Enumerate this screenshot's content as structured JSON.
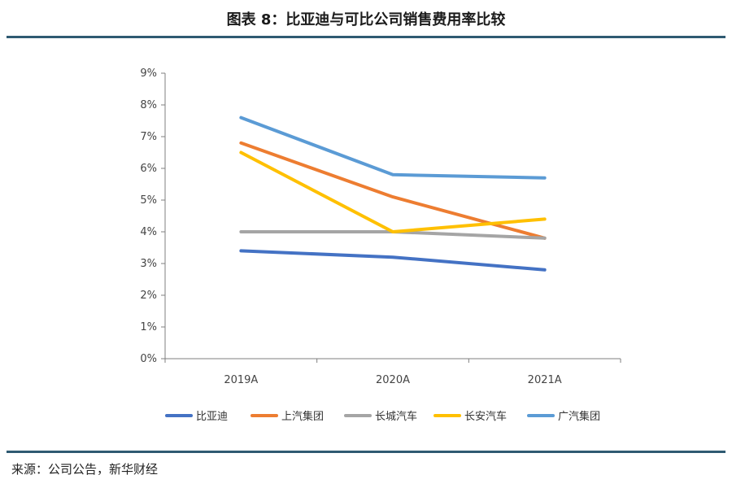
{
  "header": {
    "title": "图表 8：比亚迪与可比公司销售费用率比较"
  },
  "footer": {
    "source": "来源：公司公告，新华财经"
  },
  "chart_data": {
    "type": "line",
    "categories": [
      "2019A",
      "2020A",
      "2021A"
    ],
    "ylim": [
      0,
      9
    ],
    "yticks": [
      "0%",
      "1%",
      "2%",
      "3%",
      "4%",
      "5%",
      "6%",
      "7%",
      "8%",
      "9%"
    ],
    "grid": false,
    "legend_position": "bottom",
    "series": [
      {
        "name": "比亚迪",
        "color": "#4472c4",
        "values": [
          3.4,
          3.2,
          2.8
        ]
      },
      {
        "name": "上汽集团",
        "color": "#ed7d31",
        "values": [
          6.8,
          5.1,
          3.8
        ]
      },
      {
        "name": "长城汽车",
        "color": "#a5a5a5",
        "values": [
          4.0,
          4.0,
          3.8
        ]
      },
      {
        "name": "长安汽车",
        "color": "#ffc000",
        "values": [
          6.5,
          4.0,
          4.4
        ]
      },
      {
        "name": "广汽集团",
        "color": "#5b9bd5",
        "values": [
          7.6,
          5.8,
          5.7
        ]
      }
    ]
  }
}
